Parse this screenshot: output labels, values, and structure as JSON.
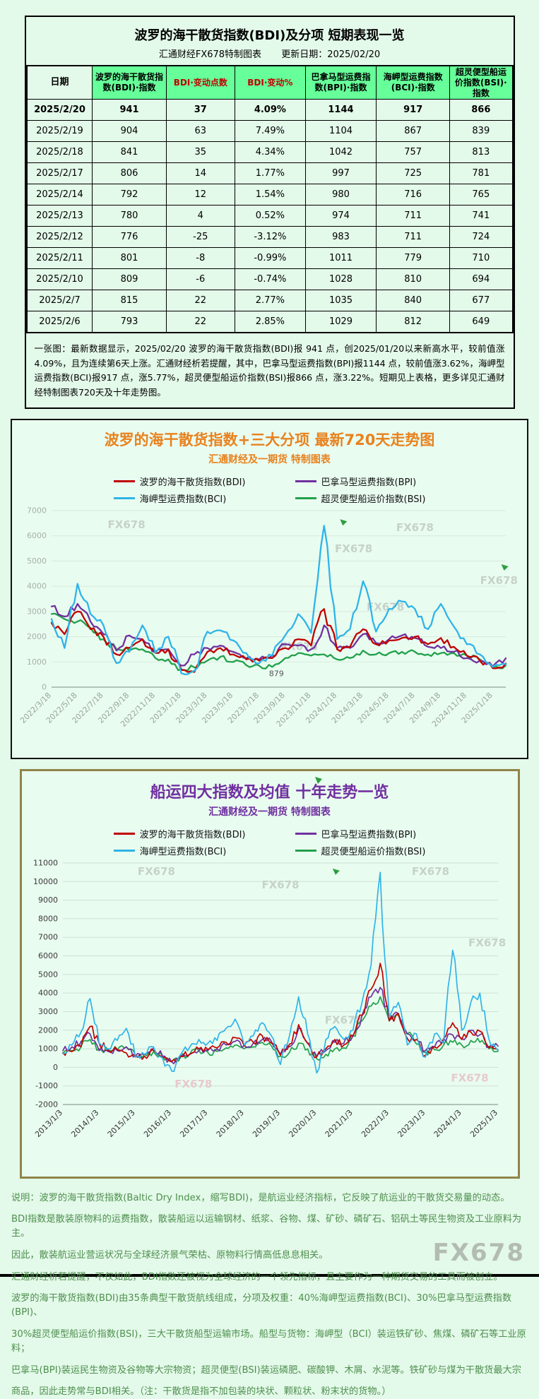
{
  "page": {
    "watermark": "FX678",
    "bg": "#e3f9e9"
  },
  "table_section": {
    "title": "波罗的海干散货指数(BDI)及分项 短期表现一览",
    "subtitle_left": "汇通财经FX678特制图表",
    "subtitle_right": "更新日期：2025/02/20",
    "columns": [
      "日期",
      "波罗的海干散货指数(BDI)·指数",
      "BDI·变动点数",
      "BDI·变动%",
      "巴拿马型运费指数(BPI)·指数",
      "海岬型运费指数(BCI)·指数",
      "超灵便型船运价指数(BSI)·指数"
    ],
    "red_column_indexes": [
      2,
      3
    ],
    "rows": [
      {
        "date": "2025/2/20",
        "bdi": "941",
        "chg": "37",
        "chg_pct": "4.09%",
        "bpi": "1144",
        "bci": "917",
        "bsi": "866",
        "bold": true
      },
      {
        "date": "2025/2/19",
        "bdi": "904",
        "chg": "63",
        "chg_pct": "7.49%",
        "bpi": "1104",
        "bci": "867",
        "bsi": "839",
        "bold": false
      },
      {
        "date": "2025/2/18",
        "bdi": "841",
        "chg": "35",
        "chg_pct": "4.34%",
        "bpi": "1042",
        "bci": "757",
        "bsi": "813",
        "bold": false
      },
      {
        "date": "2025/2/17",
        "bdi": "806",
        "chg": "14",
        "chg_pct": "1.77%",
        "bpi": "997",
        "bci": "725",
        "bsi": "781",
        "bold": false
      },
      {
        "date": "2025/2/14",
        "bdi": "792",
        "chg": "12",
        "chg_pct": "1.54%",
        "bpi": "980",
        "bci": "716",
        "bsi": "765",
        "bold": false
      },
      {
        "date": "2025/2/13",
        "bdi": "780",
        "chg": "4",
        "chg_pct": "0.52%",
        "bpi": "974",
        "bci": "711",
        "bsi": "741",
        "bold": false
      },
      {
        "date": "2025/2/12",
        "bdi": "776",
        "chg": "-25",
        "chg_pct": "-3.12%",
        "bpi": "983",
        "bci": "711",
        "bsi": "724",
        "bold": false
      },
      {
        "date": "2025/2/11",
        "bdi": "801",
        "chg": "-8",
        "chg_pct": "-0.99%",
        "bpi": "1011",
        "bci": "779",
        "bsi": "710",
        "bold": false
      },
      {
        "date": "2025/2/10",
        "bdi": "809",
        "chg": "-6",
        "chg_pct": "-0.74%",
        "bpi": "1028",
        "bci": "810",
        "bsi": "694",
        "bold": false
      },
      {
        "date": "2025/2/7",
        "bdi": "815",
        "chg": "22",
        "chg_pct": "2.77%",
        "bpi": "1035",
        "bci": "840",
        "bsi": "677",
        "bold": false
      },
      {
        "date": "2025/2/6",
        "bdi": "793",
        "chg": "22",
        "chg_pct": "2.85%",
        "bpi": "1029",
        "bci": "812",
        "bsi": "649",
        "bold": false
      }
    ],
    "note": "一张图：最新数据显示，2025/02/20 波罗的海干散货指数(BDI)报 941 点，创2025/01/20以来新高水平，较前值涨4.09%，且为连续第6天上涨。汇通财经析若提醒，其中，巴拿马型运费指数(BPI)报1144 点，较前值涨3.62%，海岬型运费指数(BCI)报917 点，涨5.77%，超灵便型船运价指数(BSI)报866 点，涨3.22%。短期见上表格，更多详见汇通财经特制图表720天及十年走势图。"
  },
  "chart_data": [
    {
      "type": "line",
      "title": "波罗的海干散货指数+三大分项 最新720天走势图",
      "subtitle": "汇通财经及一期货 特制图表",
      "grid": true,
      "legend_position": "top",
      "ylim": [
        0,
        7000
      ],
      "ystep": 1000,
      "y_tick_labels": [
        "7000",
        "6000",
        "5000",
        "4000",
        "3000",
        "2000",
        "1000",
        "0"
      ],
      "x_tick_labels": [
        "2022/3/18",
        "2022/5/18",
        "2022/7/18",
        "2022/9/18",
        "2022/11/18",
        "2023/1/18",
        "2023/3/18",
        "2023/5/18",
        "2023/7/18",
        "2023/9/18",
        "2023/11/18",
        "2024/1/18",
        "2024/3/18",
        "2024/5/18",
        "2024/7/18",
        "2024/9/18",
        "2024/11/18",
        "2025/1/18"
      ],
      "tick_every": 2,
      "x_unit": "monthly samples 2022/3 - 2025/2",
      "series": [
        {
          "code": "BDI",
          "name": "波罗的海干散货指数(BDI)",
          "color": "#c00000",
          "values": [
            2550,
            2100,
            3000,
            2300,
            2000,
            1300,
            1550,
            1900,
            1350,
            1500,
            680,
            600,
            1400,
            1550,
            1300,
            1100,
            1050,
            1150,
            1550,
            1900,
            1650,
            3100,
            1500,
            1600,
            2300,
            1700,
            1850,
            1950,
            2000,
            1700,
            1950,
            1600,
            1250,
            1050,
            750,
            941
          ]
        },
        {
          "code": "BPI",
          "name": "巴拿马型运费指数(BPI)",
          "color": "#7030a0",
          "values": [
            3200,
            2800,
            3300,
            2600,
            2100,
            1450,
            2050,
            1900,
            1400,
            1500,
            850,
            1300,
            1550,
            1650,
            1400,
            1150,
            1100,
            1250,
            1700,
            1650,
            1500,
            2450,
            1550,
            1550,
            2100,
            1750,
            1900,
            2050,
            1950,
            1600,
            1550,
            1400,
            1150,
            1050,
            820,
            1144
          ]
        },
        {
          "code": "BCI",
          "name": "海岬型运费指数(BCI)",
          "color": "#2fb4e9",
          "values": [
            2700,
            1550,
            4100,
            2900,
            2450,
            950,
            1400,
            2450,
            1350,
            2000,
            550,
            650,
            2200,
            2250,
            1850,
            1350,
            950,
            1250,
            2050,
            2900,
            2150,
            6400,
            1900,
            2300,
            4200,
            2200,
            3100,
            3400,
            3100,
            2300,
            3300,
            2400,
            1700,
            1300,
            800,
            917
          ]
        },
        {
          "code": "BSI",
          "name": "超灵便型船运价指数(BSI)",
          "color": "#21a14b",
          "values": [
            2900,
            2700,
            2600,
            2350,
            1900,
            1500,
            1450,
            1500,
            1150,
            1100,
            700,
            780,
            1050,
            1200,
            1000,
            870,
            850,
            800,
            1150,
            1350,
            1250,
            1300,
            1100,
            1150,
            1450,
            1300,
            1350,
            1400,
            1400,
            1300,
            1350,
            1350,
            1250,
            1100,
            780,
            866
          ]
        }
      ],
      "annotations": [
        {
          "label": "879",
          "xfrac": 0.495,
          "value": 430
        }
      ],
      "watermarks": [
        {
          "x": 0.165,
          "y": 0.1
        },
        {
          "x": 0.8,
          "y": 0.115
        },
        {
          "x": 0.665,
          "y": 0.235
        },
        {
          "x": 0.985,
          "y": 0.415
        },
        {
          "x": 0.735,
          "y": 0.565
        },
        {
          "x": 0.545,
          "y": 0.79
        }
      ],
      "arrows": [
        {
          "x": 0.635,
          "y": 0.045
        },
        {
          "x": 0.99,
          "y": 0.3
        }
      ]
    },
    {
      "type": "line",
      "title": "船运四大指数及均值 十年走势一览",
      "subtitle": "汇通财经及一期货 特制图表",
      "grid": true,
      "legend_position": "top",
      "ylim": [
        -2000,
        11000
      ],
      "ystep": 1000,
      "y_tick_labels": [
        "11000",
        "10000",
        "9000",
        "8000",
        "7000",
        "6000",
        "5000",
        "4000",
        "3000",
        "2000",
        "1000",
        "0",
        "-1000",
        "-2000"
      ],
      "x_tick_labels": [
        "2013/1/3",
        "2014/1/3",
        "2015/1/3",
        "2016/1/3",
        "2017/1/3",
        "2018/1/3",
        "2019/1/3",
        "2020/1/3",
        "2021/1/3",
        "2022/1/3",
        "2023/1/3",
        "2024/1/3",
        "2025/1/3"
      ],
      "tick_every": 4,
      "x_unit": "quarterly samples 2013Q1 - 2025Q1",
      "series": [
        {
          "code": "BDI",
          "name": "波罗的海干散货指数(BDI)",
          "color": "#c00000",
          "values": [
            780,
            850,
            1100,
            2200,
            1300,
            950,
            950,
            780,
            600,
            600,
            900,
            500,
            310,
            610,
            720,
            1000,
            950,
            1050,
            1350,
            1600,
            1150,
            1350,
            1700,
            1300,
            650,
            1250,
            2300,
            1300,
            550,
            1000,
            1500,
            1200,
            1700,
            2800,
            4200,
            5600,
            2500,
            2900,
            1550,
            1500,
            650,
            1100,
            1550,
            2400,
            1500,
            1900,
            1950,
            1050,
            941
          ]
        },
        {
          "code": "BPI",
          "name": "巴拿马型运费指数(BPI)",
          "color": "#7030a0",
          "values": [
            900,
            1100,
            1400,
            1800,
            900,
            850,
            900,
            1100,
            600,
            700,
            1050,
            600,
            300,
            600,
            700,
            900,
            900,
            1000,
            1200,
            1400,
            1200,
            1300,
            1500,
            1400,
            700,
            1100,
            2100,
            1300,
            600,
            900,
            1350,
            1300,
            1700,
            2800,
            3800,
            4300,
            2600,
            2900,
            1800,
            1500,
            900,
            1100,
            1550,
            1750,
            1550,
            2000,
            1750,
            1100,
            1144
          ]
        },
        {
          "code": "BCI",
          "name": "海岬型运费指数(BCI)",
          "color": "#2fb4e9",
          "values": [
            750,
            1200,
            1900,
            3700,
            1300,
            1000,
            1450,
            2100,
            550,
            700,
            1100,
            500,
            -200,
            700,
            1100,
            1500,
            1300,
            1450,
            2100,
            2600,
            1200,
            1700,
            2400,
            1700,
            150,
            1700,
            3800,
            1800,
            -300,
            1500,
            2200,
            1500,
            2000,
            3500,
            5500,
            10500,
            2700,
            3500,
            1200,
            1800,
            550,
            1800,
            1300,
            6300,
            2000,
            3500,
            4000,
            1500,
            917
          ]
        },
        {
          "code": "BSI",
          "name": "超灵便型船运价指数(BSI)",
          "color": "#21a14b",
          "values": [
            750,
            900,
            1100,
            1500,
            1000,
            900,
            950,
            1100,
            650,
            700,
            850,
            550,
            300,
            550,
            700,
            900,
            800,
            850,
            1050,
            1200,
            1000,
            1100,
            1350,
            1150,
            600,
            800,
            1300,
            1000,
            450,
            700,
            1000,
            1050,
            1700,
            2500,
            3300,
            3800,
            2500,
            2800,
            1800,
            1250,
            800,
            950,
            1200,
            1350,
            1200,
            1450,
            1350,
            1000,
            866
          ]
        }
      ],
      "annotations": [],
      "watermarks": [
        {
          "x": 0.215,
          "y": 0.05
        },
        {
          "x": 0.5,
          "y": 0.105
        },
        {
          "x": 0.845,
          "y": 0.05
        },
        {
          "x": 0.645,
          "y": 0.665
        },
        {
          "x": 0.975,
          "y": 0.345
        },
        {
          "x": 0.3,
          "y": 0.93,
          "style": "pink"
        },
        {
          "x": 0.935,
          "y": 0.905,
          "style": "pink"
        }
      ],
      "arrows": [
        {
          "x": 0.62,
          "y": 0.02
        }
      ]
    }
  ],
  "footer": {
    "lines": [
      "说明：波罗的海干散货指数(Baltic Dry Index，缩写BDI)，是航运业经济指标，它反映了航运业的干散货交易量的动态。",
      "BDI指数是散装原物料的运费指数，散装船运以运输钢材、纸浆、谷物、煤、矿砂、磷矿石、铝矾土等民生物资及工业原料为主。",
      "因此，散装航运业营运状况与全球经济景气荣枯、原物料行情高低息息相关。",
      "汇通财经析若提醒，不仅如此，BDI指数还被视为全球经济的一个领先指标，且主要作为一种期货交易的工具而被创立。",
      "波罗的海干散货指数(BDI)由35条典型干散货航线组成，分项及权重：40%海岬型运费指数(BCI)、30%巴拿马型运费指数(BPI)、",
      "30%超灵便型船运价指数(BSI)，三大干散货船型运输市场。船型与货物：海岬型（BCI）装运铁矿砂、焦煤、磷矿石等工业原料；",
      "巴拿马(BPI)装运民生物资及谷物等大宗物资；超灵便型(BSI)装运磷肥、碳酸钾、木屑、水泥等。铁矿砂与煤为干散货最大宗",
      "商品，因此走势常与BDI相关。（注：干散货是指不加包装的块状、颗粒状、粉末状的货物。）"
    ],
    "watermark": "FX678"
  }
}
